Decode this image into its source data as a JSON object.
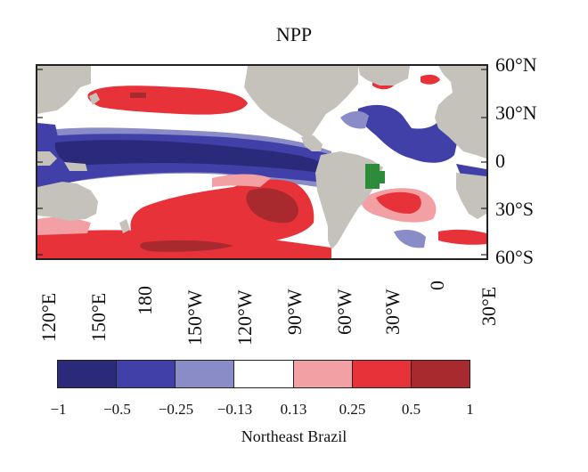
{
  "title": "NPP",
  "subtitle": "Northeast Brazil",
  "lat_labels": [
    "60°N",
    "30°N",
    "0",
    "30°S",
    "60°S"
  ],
  "lon_labels": [
    "120°E",
    "150°E",
    "180",
    "150°W",
    "120°W",
    "90°W",
    "60°W",
    "30°W",
    "0",
    "30°E"
  ],
  "colorbar": {
    "colors": [
      "#2b2a7a",
      "#4040a8",
      "#8a8cc8",
      "#ffffff",
      "#f2a0a4",
      "#e8323a",
      "#a82a2e"
    ],
    "ticks": [
      "−1",
      "−0.5",
      "−0.25",
      "−0.13",
      "0.13",
      "0.25",
      "0.5",
      "1"
    ]
  },
  "colors": {
    "land": "#c5c1bb",
    "region_highlight": "#2e8b3a"
  },
  "map_extent": {
    "lon_range": [
      "120°E",
      "30°E"
    ],
    "lat_range": [
      "60°S",
      "60°N"
    ]
  }
}
